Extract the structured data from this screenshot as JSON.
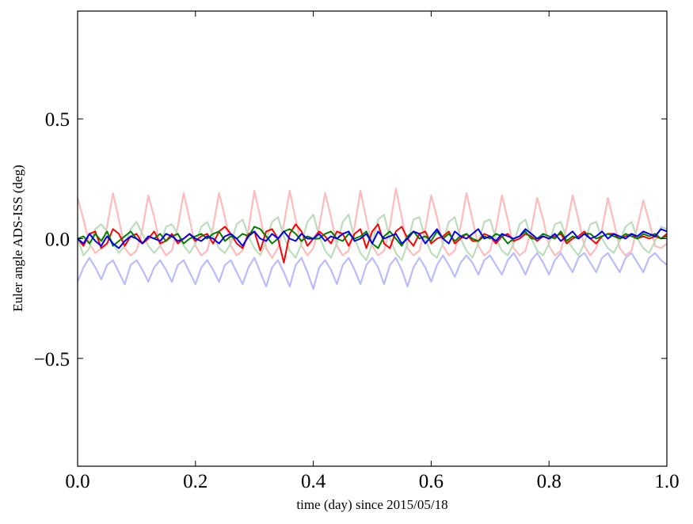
{
  "chart_data": {
    "type": "line",
    "xlabel": "time (day) since 2015/05/18",
    "ylabel": "Euler angle ADS-ISS (deg)",
    "xlim": [
      0.0,
      1.0
    ],
    "ylim": [
      -0.95,
      0.95
    ],
    "x_ticks": [
      0.0,
      0.2,
      0.4,
      0.6,
      0.8,
      1.0
    ],
    "x_tick_labels": [
      "0.0",
      "0.2",
      "0.4",
      "0.6",
      "0.8",
      "1.0"
    ],
    "y_ticks": [
      0.5,
      0.0,
      -0.5
    ],
    "y_tick_labels": [
      "0.5",
      "0.0",
      "−0.5"
    ],
    "grid": false,
    "legend": "none",
    "x": [
      0.0,
      0.01,
      0.02,
      0.03,
      0.04,
      0.05,
      0.06,
      0.07,
      0.08,
      0.09,
      0.1,
      0.11,
      0.12,
      0.13,
      0.14,
      0.15,
      0.16,
      0.17,
      0.18,
      0.19,
      0.2,
      0.21,
      0.22,
      0.23,
      0.24,
      0.25,
      0.26,
      0.27,
      0.28,
      0.29,
      0.3,
      0.31,
      0.32,
      0.33,
      0.34,
      0.35,
      0.36,
      0.37,
      0.38,
      0.39,
      0.4,
      0.41,
      0.42,
      0.43,
      0.44,
      0.45,
      0.46,
      0.47,
      0.48,
      0.49,
      0.5,
      0.51,
      0.52,
      0.53,
      0.54,
      0.55,
      0.56,
      0.57,
      0.58,
      0.59,
      0.6,
      0.61,
      0.62,
      0.63,
      0.64,
      0.65,
      0.66,
      0.67,
      0.68,
      0.69,
      0.7,
      0.71,
      0.72,
      0.73,
      0.74,
      0.75,
      0.76,
      0.77,
      0.78,
      0.79,
      0.8,
      0.81,
      0.82,
      0.83,
      0.84,
      0.85,
      0.86,
      0.87,
      0.88,
      0.89,
      0.9,
      0.91,
      0.92,
      0.93,
      0.94,
      0.95,
      0.96,
      0.97,
      0.98,
      0.99,
      1.0
    ],
    "series": [
      {
        "color": "#ffbbbb",
        "values": [
          0.17,
          0.08,
          -0.02,
          -0.06,
          -0.04,
          0.05,
          0.19,
          0.08,
          -0.04,
          -0.07,
          -0.05,
          0.04,
          0.18,
          0.09,
          -0.03,
          -0.07,
          -0.05,
          0.05,
          0.19,
          0.08,
          -0.03,
          -0.07,
          -0.05,
          0.05,
          0.19,
          0.09,
          -0.03,
          -0.07,
          -0.05,
          0.04,
          0.2,
          0.09,
          -0.04,
          -0.08,
          -0.04,
          0.06,
          0.2,
          0.08,
          -0.03,
          -0.07,
          -0.04,
          0.05,
          0.19,
          0.09,
          -0.03,
          -0.07,
          -0.05,
          0.05,
          0.2,
          0.08,
          -0.03,
          -0.07,
          -0.05,
          0.05,
          0.21,
          0.09,
          -0.04,
          -0.07,
          -0.05,
          0.04,
          0.18,
          0.09,
          -0.03,
          -0.07,
          -0.05,
          0.05,
          0.19,
          0.08,
          -0.03,
          -0.07,
          -0.05,
          0.04,
          0.18,
          0.08,
          -0.04,
          -0.07,
          -0.05,
          0.04,
          0.17,
          0.08,
          -0.03,
          -0.07,
          -0.05,
          0.05,
          0.18,
          0.08,
          -0.03,
          -0.07,
          -0.04,
          0.04,
          0.17,
          0.07,
          -0.04,
          -0.07,
          -0.05,
          0.05,
          0.16,
          0.07,
          -0.03,
          -0.04,
          -0.02
        ]
      },
      {
        "color": "#bbddbb",
        "values": [
          0.0,
          -0.07,
          -0.04,
          0.04,
          0.06,
          0.03,
          -0.02,
          -0.06,
          -0.03,
          0.04,
          0.07,
          0.02,
          -0.03,
          -0.06,
          -0.03,
          0.05,
          0.06,
          0.02,
          -0.03,
          -0.06,
          -0.02,
          0.05,
          0.07,
          0.01,
          -0.04,
          -0.06,
          -0.02,
          0.06,
          0.08,
          0.01,
          -0.04,
          -0.07,
          -0.01,
          0.07,
          0.09,
          0.01,
          -0.05,
          -0.08,
          -0.02,
          0.07,
          0.1,
          0.01,
          -0.05,
          -0.08,
          -0.02,
          0.07,
          0.1,
          0.0,
          -0.06,
          -0.09,
          -0.02,
          0.08,
          0.1,
          0.0,
          -0.06,
          -0.09,
          -0.02,
          0.08,
          0.09,
          0.0,
          -0.06,
          -0.08,
          -0.02,
          0.07,
          0.09,
          0.0,
          -0.05,
          -0.08,
          -0.02,
          0.07,
          0.08,
          0.0,
          -0.05,
          -0.07,
          -0.02,
          0.06,
          0.08,
          0.0,
          -0.05,
          -0.07,
          -0.02,
          0.06,
          0.07,
          0.0,
          -0.04,
          -0.07,
          -0.02,
          0.06,
          0.07,
          0.0,
          -0.04,
          -0.06,
          -0.01,
          0.05,
          0.07,
          0.0,
          -0.04,
          -0.06,
          -0.01,
          0.05,
          0.04
        ]
      },
      {
        "color": "#bbbbff",
        "values": [
          -0.18,
          -0.12,
          -0.08,
          -0.12,
          -0.17,
          -0.11,
          -0.09,
          -0.14,
          -0.19,
          -0.11,
          -0.09,
          -0.13,
          -0.18,
          -0.12,
          -0.09,
          -0.13,
          -0.18,
          -0.11,
          -0.09,
          -0.14,
          -0.19,
          -0.12,
          -0.09,
          -0.13,
          -0.18,
          -0.11,
          -0.09,
          -0.14,
          -0.19,
          -0.12,
          -0.08,
          -0.14,
          -0.2,
          -0.12,
          -0.09,
          -0.14,
          -0.2,
          -0.11,
          -0.08,
          -0.14,
          -0.21,
          -0.12,
          -0.09,
          -0.13,
          -0.19,
          -0.11,
          -0.08,
          -0.13,
          -0.19,
          -0.11,
          -0.08,
          -0.12,
          -0.19,
          -0.11,
          -0.08,
          -0.13,
          -0.2,
          -0.12,
          -0.08,
          -0.12,
          -0.18,
          -0.11,
          -0.07,
          -0.11,
          -0.16,
          -0.1,
          -0.07,
          -0.1,
          -0.15,
          -0.09,
          -0.07,
          -0.11,
          -0.15,
          -0.09,
          -0.06,
          -0.1,
          -0.15,
          -0.09,
          -0.06,
          -0.1,
          -0.15,
          -0.09,
          -0.06,
          -0.1,
          -0.14,
          -0.08,
          -0.06,
          -0.1,
          -0.14,
          -0.08,
          -0.06,
          -0.1,
          -0.14,
          -0.08,
          -0.06,
          -0.1,
          -0.14,
          -0.08,
          -0.06,
          -0.09,
          -0.11
        ]
      },
      {
        "color": "#ff0000",
        "values": [
          0.0,
          -0.03,
          0.02,
          0.03,
          -0.04,
          -0.02,
          0.04,
          0.02,
          -0.03,
          0.01,
          0.02,
          -0.02,
          0.0,
          0.03,
          -0.02,
          -0.01,
          0.02,
          -0.02,
          0.0,
          0.02,
          -0.01,
          0.01,
          0.02,
          -0.02,
          0.03,
          0.05,
          0.02,
          -0.02,
          -0.04,
          0.02,
          0.03,
          -0.05,
          0.03,
          0.04,
          0.0,
          -0.1,
          0.02,
          0.06,
          0.03,
          -0.03,
          0.0,
          0.03,
          0.01,
          -0.02,
          0.03,
          0.02,
          -0.03,
          0.02,
          0.04,
          -0.04,
          0.03,
          0.06,
          -0.02,
          -0.04,
          0.03,
          0.05,
          0.0,
          -0.03,
          0.02,
          0.03,
          -0.02,
          0.0,
          0.01,
          0.03,
          -0.02,
          0.0,
          0.02,
          -0.01,
          -0.01,
          0.02,
          0.01,
          -0.02,
          0.01,
          0.02,
          -0.01,
          0.0,
          0.02,
          0.01,
          -0.01,
          0.01,
          0.0,
          0.01,
          0.02,
          -0.02,
          0.0,
          0.01,
          0.03,
          0.0,
          -0.02,
          0.01,
          0.02,
          0.02,
          0.0,
          0.01,
          0.02,
          0.0,
          0.01,
          0.0,
          0.01,
          0.0,
          0.02
        ]
      },
      {
        "color": "#008000",
        "values": [
          0.0,
          0.01,
          -0.02,
          0.02,
          -0.01,
          0.03,
          -0.03,
          -0.01,
          0.01,
          0.03,
          0.0,
          -0.02,
          0.01,
          0.0,
          0.02,
          -0.01,
          0.01,
          0.02,
          -0.02,
          0.0,
          0.01,
          0.02,
          0.0,
          0.02,
          0.03,
          -0.01,
          0.01,
          0.0,
          0.02,
          0.01,
          0.05,
          0.04,
          0.01,
          -0.02,
          0.0,
          0.03,
          0.04,
          0.02,
          -0.01,
          0.01,
          0.0,
          0.0,
          0.02,
          0.03,
          0.0,
          -0.01,
          0.02,
          0.0,
          0.01,
          0.03,
          -0.02,
          -0.04,
          0.01,
          0.03,
          0.0,
          -0.03,
          0.01,
          0.03,
          0.0,
          0.01,
          -0.01,
          0.03,
          0.0,
          0.02,
          -0.01,
          0.01,
          0.02,
          0.0,
          -0.01,
          0.01,
          0.0,
          0.02,
          0.01,
          -0.02,
          0.0,
          0.01,
          0.03,
          0.0,
          0.0,
          0.02,
          0.01,
          0.0,
          0.03,
          -0.01,
          0.01,
          0.0,
          0.02,
          0.02,
          0.0,
          0.01,
          0.02,
          0.01,
          0.0,
          0.02,
          0.01,
          0.0,
          0.02,
          0.01,
          0.02,
          0.0,
          0.01
        ]
      },
      {
        "color": "#0000ee",
        "values": [
          0.0,
          -0.02,
          0.02,
          -0.01,
          -0.03,
          0.01,
          -0.02,
          -0.04,
          -0.01,
          0.01,
          0.0,
          -0.02,
          0.01,
          0.0,
          -0.01,
          0.02,
          0.01,
          -0.01,
          0.0,
          0.02,
          0.0,
          -0.01,
          0.01,
          0.0,
          -0.02,
          0.01,
          0.02,
          0.0,
          -0.03,
          0.01,
          0.03,
          0.0,
          -0.01,
          0.02,
          0.0,
          0.03,
          0.0,
          -0.01,
          0.02,
          0.0,
          0.0,
          0.02,
          -0.01,
          0.01,
          0.0,
          0.02,
          0.03,
          -0.01,
          0.0,
          0.02,
          -0.02,
          0.03,
          0.0,
          0.01,
          0.02,
          -0.02,
          0.0,
          0.03,
          0.02,
          -0.02,
          0.01,
          0.04,
          0.0,
          -0.02,
          0.03,
          0.01,
          0.0,
          0.02,
          0.04,
          0.0,
          0.01,
          -0.01,
          0.02,
          0.01,
          0.0,
          0.01,
          0.04,
          0.02,
          0.0,
          0.01,
          0.0,
          0.02,
          -0.01,
          0.01,
          0.03,
          0.0,
          0.02,
          0.0,
          0.01,
          0.03,
          0.0,
          0.02,
          0.01,
          0.0,
          0.02,
          0.01,
          0.03,
          0.02,
          0.01,
          0.04,
          0.03
        ]
      }
    ]
  }
}
